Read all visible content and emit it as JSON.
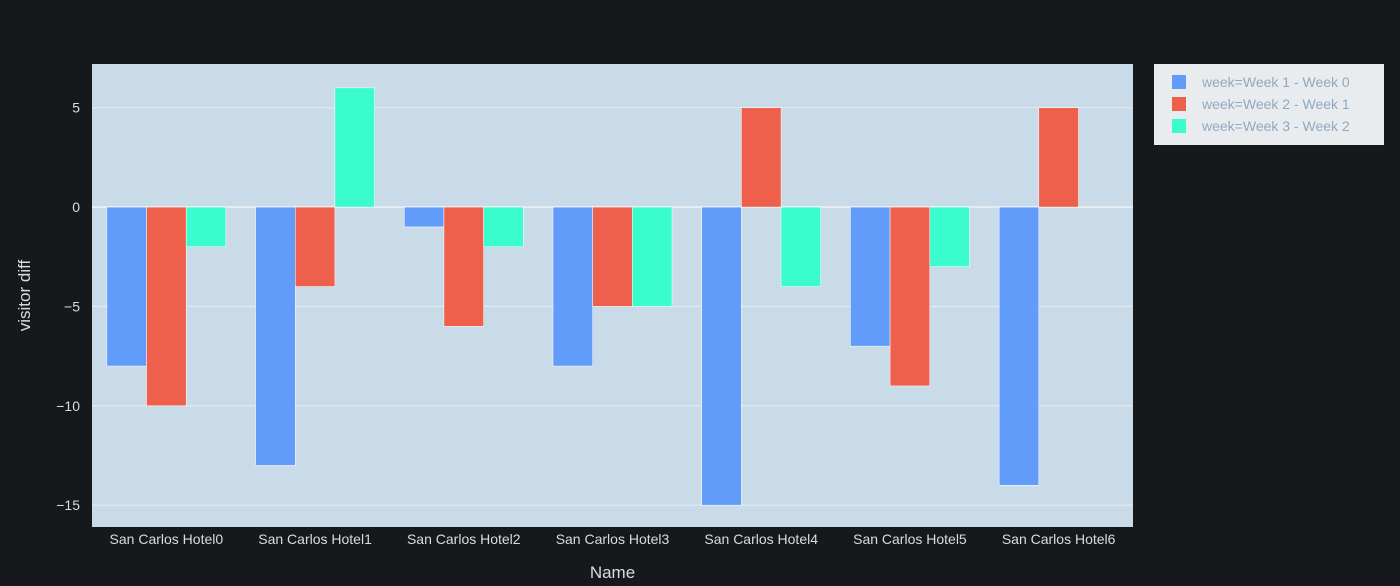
{
  "chart_data": {
    "type": "bar",
    "barmode": "group",
    "categories": [
      "San Carlos Hotel0",
      "San Carlos Hotel1",
      "San Carlos Hotel2",
      "San Carlos Hotel3",
      "San Carlos Hotel4",
      "San Carlos Hotel5",
      "San Carlos Hotel6"
    ],
    "series": [
      {
        "name": "week=Week 1 - Week 0",
        "color": "#636efa",
        "values": [
          -8,
          -13,
          -1,
          -8,
          -15,
          -7,
          -14
        ]
      },
      {
        "name": "week=Week 2 - Week 1",
        "color": "#ef553b",
        "values": [
          -10,
          -4,
          -6,
          -5,
          5,
          -9,
          5
        ]
      },
      {
        "name": "week=Week 3 - Week 2",
        "color": "#00cc96",
        "values": [
          -2,
          6,
          -2,
          -5,
          -4,
          -3,
          0
        ]
      }
    ],
    "xlabel": "Name",
    "ylabel": "visitor diff",
    "ylim": [
      -16.1,
      7.2
    ],
    "yticks": [
      5,
      0,
      -5,
      -10,
      -15
    ],
    "ytick_labels": [
      "5",
      "0",
      "−5",
      "−10",
      "−15"
    ],
    "grid": true,
    "legend_position": "top-right outside"
  },
  "colors": {
    "page_background": "#15191b",
    "plot_background": "#c9dbe9",
    "gridline": "#e6edf3",
    "legend_background": "#e8ecef",
    "series_fill": [
      "#629cfa",
      "#ee5f4c",
      "#3bfccc"
    ]
  }
}
